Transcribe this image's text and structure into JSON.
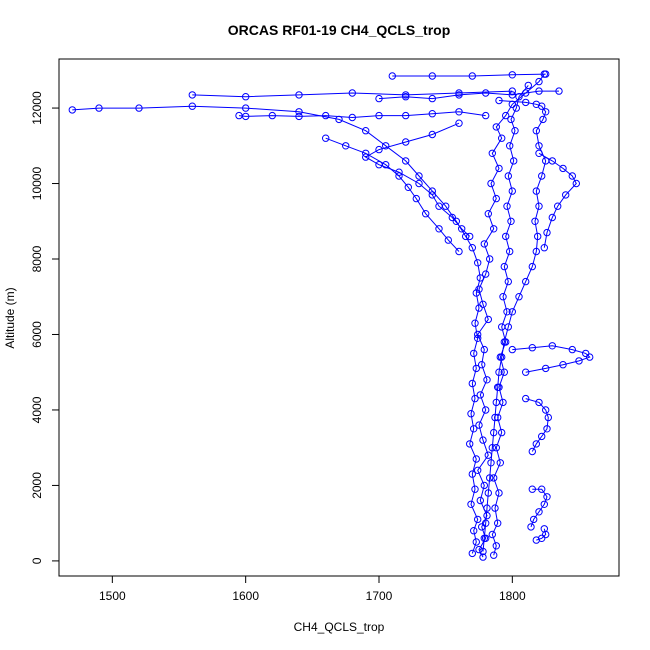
{
  "chart_data": {
    "type": "scatter",
    "title": "ORCAS RF01-19 CH4_QCLS_trop",
    "xlabel": "CH4_QCLS_trop",
    "ylabel": "Altitude (m)",
    "xlim": [
      1460,
      1880
    ],
    "ylim": [
      -400,
      13300
    ],
    "xticks": [
      1500,
      1600,
      1700,
      1800
    ],
    "yticks": [
      0,
      2000,
      4000,
      6000,
      8000,
      10000,
      12000
    ],
    "marker": "open-circle",
    "connected": true,
    "grid": false,
    "legend": "none",
    "colors": {
      "series": "#0000ff",
      "axes": "#000000",
      "background": "#ffffff"
    },
    "series": [
      {
        "points": [
          [
            1778,
            100
          ],
          [
            1775,
            300
          ],
          [
            1780,
            600
          ],
          [
            1777,
            900
          ],
          [
            1781,
            1200
          ],
          [
            1776,
            1600
          ],
          [
            1779,
            2000
          ],
          [
            1774,
            2400
          ],
          [
            1782,
            2800
          ],
          [
            1778,
            3200
          ],
          [
            1775,
            3600
          ],
          [
            1780,
            4000
          ],
          [
            1776,
            4400
          ],
          [
            1781,
            4800
          ],
          [
            1777,
            5200
          ],
          [
            1779,
            5600
          ],
          [
            1774,
            6000
          ],
          [
            1782,
            6400
          ],
          [
            1778,
            6800
          ],
          [
            1775,
            7200
          ],
          [
            1780,
            7600
          ],
          [
            1783,
            8000
          ],
          [
            1779,
            8400
          ],
          [
            1786,
            8800
          ],
          [
            1782,
            9200
          ],
          [
            1788,
            9600
          ],
          [
            1784,
            10000
          ],
          [
            1790,
            10400
          ],
          [
            1785,
            10800
          ],
          [
            1792,
            11200
          ],
          [
            1788,
            11500
          ],
          [
            1795,
            11800
          ],
          [
            1800,
            12100
          ],
          [
            1810,
            12400
          ],
          [
            1820,
            12700
          ],
          [
            1824,
            12900
          ]
        ]
      },
      {
        "points": [
          [
            1770,
            200
          ],
          [
            1773,
            500
          ],
          [
            1771,
            800
          ],
          [
            1774,
            1100
          ],
          [
            1769,
            1500
          ],
          [
            1772,
            1900
          ],
          [
            1770,
            2300
          ],
          [
            1773,
            2700
          ],
          [
            1768,
            3100
          ],
          [
            1771,
            3500
          ],
          [
            1769,
            3900
          ],
          [
            1772,
            4300
          ],
          [
            1770,
            4700
          ],
          [
            1773,
            5100
          ],
          [
            1771,
            5500
          ],
          [
            1774,
            5900
          ],
          [
            1772,
            6300
          ],
          [
            1775,
            6700
          ],
          [
            1773,
            7100
          ],
          [
            1776,
            7500
          ],
          [
            1774,
            7900
          ],
          [
            1770,
            8300
          ],
          [
            1765,
            8600
          ],
          [
            1758,
            9000
          ],
          [
            1750,
            9400
          ],
          [
            1740,
            9800
          ],
          [
            1730,
            10200
          ],
          [
            1720,
            10600
          ],
          [
            1705,
            11000
          ],
          [
            1690,
            11400
          ],
          [
            1670,
            11700
          ],
          [
            1640,
            11900
          ],
          [
            1600,
            12000
          ],
          [
            1560,
            12050
          ],
          [
            1520,
            12000
          ],
          [
            1490,
            12000
          ],
          [
            1470,
            11950
          ]
        ]
      },
      {
        "points": [
          [
            1786,
            150
          ],
          [
            1788,
            400
          ],
          [
            1785,
            700
          ],
          [
            1789,
            1000
          ],
          [
            1787,
            1400
          ],
          [
            1790,
            1800
          ],
          [
            1786,
            2200
          ],
          [
            1791,
            2600
          ],
          [
            1788,
            3000
          ],
          [
            1792,
            3400
          ],
          [
            1789,
            3800
          ],
          [
            1793,
            4200
          ],
          [
            1790,
            4600
          ],
          [
            1794,
            5000
          ],
          [
            1791,
            5400
          ],
          [
            1795,
            5800
          ],
          [
            1792,
            6200
          ],
          [
            1796,
            6600
          ],
          [
            1793,
            7000
          ],
          [
            1797,
            7400
          ],
          [
            1794,
            7800
          ],
          [
            1798,
            8200
          ],
          [
            1795,
            8600
          ],
          [
            1799,
            9000
          ],
          [
            1796,
            9400
          ],
          [
            1800,
            9800
          ],
          [
            1797,
            10200
          ],
          [
            1801,
            10600
          ],
          [
            1798,
            11000
          ],
          [
            1802,
            11400
          ],
          [
            1799,
            11700
          ],
          [
            1803,
            12000
          ],
          [
            1805,
            12300
          ],
          [
            1812,
            12600
          ]
        ]
      },
      {
        "points": [
          [
            1780,
            11800
          ],
          [
            1760,
            11900
          ],
          [
            1740,
            11850
          ],
          [
            1720,
            11800
          ],
          [
            1700,
            11800
          ],
          [
            1680,
            11750
          ],
          [
            1660,
            11800
          ],
          [
            1640,
            11780
          ],
          [
            1620,
            11800
          ],
          [
            1600,
            11780
          ],
          [
            1595,
            11800
          ]
        ]
      },
      {
        "points": [
          [
            1700,
            12250
          ],
          [
            1720,
            12300
          ],
          [
            1740,
            12250
          ],
          [
            1760,
            12350
          ],
          [
            1780,
            12400
          ],
          [
            1800,
            12350
          ],
          [
            1820,
            12450
          ],
          [
            1835,
            12450
          ]
        ]
      },
      {
        "points": [
          [
            1560,
            12350
          ],
          [
            1600,
            12300
          ],
          [
            1640,
            12350
          ],
          [
            1680,
            12400
          ],
          [
            1720,
            12350
          ],
          [
            1760,
            12400
          ],
          [
            1800,
            12450
          ]
        ]
      },
      {
        "points": [
          [
            1710,
            12850
          ],
          [
            1740,
            12850
          ],
          [
            1770,
            12850
          ],
          [
            1800,
            12880
          ],
          [
            1825,
            12900
          ]
        ]
      },
      {
        "points": [
          [
            1790,
            12200
          ],
          [
            1810,
            12150
          ],
          [
            1818,
            12100
          ],
          [
            1822,
            12050
          ],
          [
            1825,
            11900
          ],
          [
            1823,
            11700
          ],
          [
            1818,
            11400
          ],
          [
            1820,
            11000
          ],
          [
            1825,
            10600
          ],
          [
            1822,
            10200
          ],
          [
            1818,
            9800
          ],
          [
            1820,
            9400
          ],
          [
            1817,
            9000
          ],
          [
            1819,
            8600
          ],
          [
            1818,
            8200
          ],
          [
            1815,
            7800
          ],
          [
            1810,
            7400
          ],
          [
            1805,
            7000
          ],
          [
            1800,
            6600
          ],
          [
            1797,
            6200
          ],
          [
            1794,
            5800
          ],
          [
            1792,
            5400
          ],
          [
            1790,
            5000
          ],
          [
            1789,
            4600
          ],
          [
            1788,
            4200
          ],
          [
            1787,
            3800
          ],
          [
            1786,
            3400
          ],
          [
            1785,
            3000
          ],
          [
            1784,
            2600
          ],
          [
            1783,
            2200
          ],
          [
            1782,
            1800
          ],
          [
            1781,
            1400
          ],
          [
            1780,
            1000
          ],
          [
            1779,
            600
          ],
          [
            1778,
            250
          ]
        ]
      },
      {
        "points": [
          [
            1800,
            5600
          ],
          [
            1815,
            5650
          ],
          [
            1830,
            5700
          ],
          [
            1845,
            5600
          ],
          [
            1855,
            5500
          ],
          [
            1858,
            5400
          ],
          [
            1850,
            5300
          ],
          [
            1838,
            5200
          ],
          [
            1825,
            5100
          ],
          [
            1810,
            5000
          ]
        ]
      },
      {
        "points": [
          [
            1810,
            4300
          ],
          [
            1820,
            4200
          ],
          [
            1825,
            4000
          ],
          [
            1827,
            3800
          ],
          [
            1826,
            3500
          ],
          [
            1822,
            3300
          ],
          [
            1818,
            3100
          ],
          [
            1815,
            2900
          ]
        ]
      },
      {
        "points": [
          [
            1815,
            1900
          ],
          [
            1822,
            1900
          ],
          [
            1826,
            1700
          ],
          [
            1824,
            1500
          ],
          [
            1820,
            1300
          ],
          [
            1816,
            1100
          ],
          [
            1814,
            900
          ]
        ]
      },
      {
        "points": [
          [
            1818,
            550
          ],
          [
            1822,
            600
          ],
          [
            1825,
            700
          ],
          [
            1824,
            850
          ]
        ]
      },
      {
        "points": [
          [
            1760,
            11600
          ],
          [
            1740,
            11300
          ],
          [
            1720,
            11100
          ],
          [
            1700,
            10900
          ],
          [
            1690,
            10700
          ],
          [
            1700,
            10500
          ],
          [
            1715,
            10300
          ],
          [
            1730,
            10000
          ],
          [
            1740,
            9700
          ],
          [
            1745,
            9400
          ],
          [
            1755,
            9100
          ],
          [
            1762,
            8800
          ],
          [
            1768,
            8600
          ]
        ]
      },
      {
        "points": [
          [
            1820,
            10800
          ],
          [
            1830,
            10600
          ],
          [
            1838,
            10400
          ],
          [
            1845,
            10200
          ],
          [
            1848,
            10000
          ],
          [
            1840,
            9700
          ],
          [
            1834,
            9400
          ],
          [
            1830,
            9100
          ],
          [
            1826,
            8700
          ],
          [
            1824,
            8300
          ]
        ]
      },
      {
        "points": [
          [
            1660,
            11200
          ],
          [
            1675,
            11000
          ],
          [
            1690,
            10800
          ],
          [
            1705,
            10500
          ],
          [
            1715,
            10200
          ],
          [
            1722,
            9900
          ],
          [
            1728,
            9600
          ],
          [
            1735,
            9200
          ],
          [
            1745,
            8800
          ],
          [
            1752,
            8500
          ],
          [
            1760,
            8200
          ]
        ]
      }
    ]
  }
}
